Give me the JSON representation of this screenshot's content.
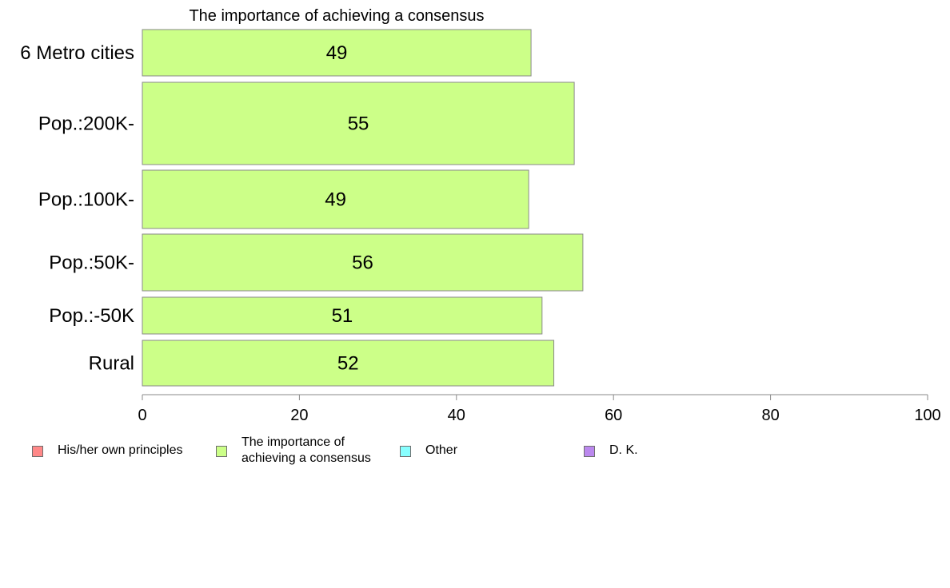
{
  "chart_data": {
    "type": "bar",
    "orientation": "horizontal",
    "title": "The importance of achieving a consensus",
    "categories": [
      "6 Metro cities",
      "Pop.:200K-",
      "Pop.:100K-",
      "Pop.:50K-",
      "Pop.:-50K",
      "Rural"
    ],
    "series": [
      {
        "name": "The importance of achieving a consensus",
        "values": [
          49.5,
          55,
          49.2,
          56.1,
          50.9,
          52.4
        ],
        "labels": [
          "49",
          "55",
          "49",
          "56",
          "51",
          "52"
        ],
        "color": "#ccff88"
      }
    ],
    "xlim": [
      0,
      100
    ],
    "x_ticks": [
      "0",
      "20",
      "40",
      "60",
      "80",
      "100"
    ],
    "grid": false,
    "legend_position": "bottom",
    "legend": [
      {
        "label": "His/her own principles",
        "color": "#ff8888"
      },
      {
        "label": "The importance of\nachieving a consensus",
        "color": "#ccff88"
      },
      {
        "label": "Other",
        "color": "#88ffff"
      },
      {
        "label": "D. K.",
        "color": "#bb88ee"
      }
    ]
  }
}
